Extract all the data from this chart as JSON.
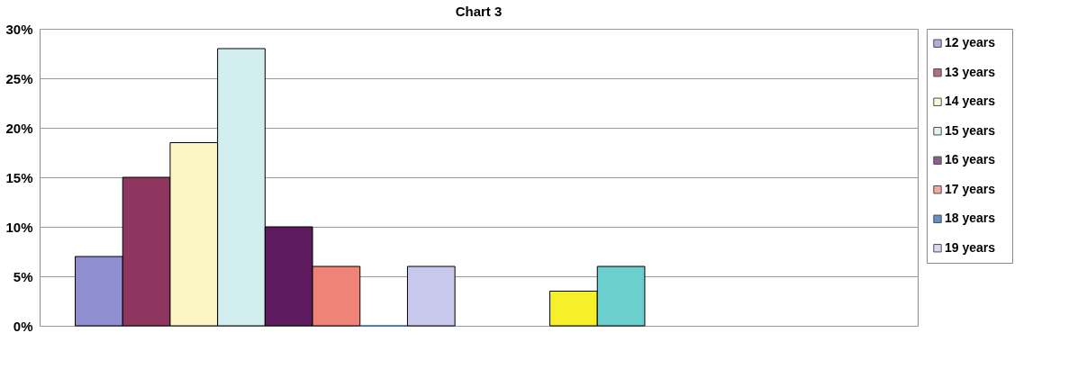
{
  "chart_data": {
    "type": "bar",
    "title": "Chart 3",
    "categories": [
      null
    ],
    "series": [
      {
        "name": "12 years",
        "color": "#8e8ed0",
        "values": [
          7
        ]
      },
      {
        "name": "13 years",
        "color": "#8e3560",
        "values": [
          15
        ]
      },
      {
        "name": "14 years",
        "color": "#fbf6c4",
        "values": [
          18.5
        ]
      },
      {
        "name": "15 years",
        "color": "#d3eeee",
        "values": [
          28
        ]
      },
      {
        "name": "16 years",
        "color": "#5e1a5e",
        "values": [
          10
        ]
      },
      {
        "name": "17 years",
        "color": "#f08378",
        "values": [
          6
        ]
      },
      {
        "name": "18 years",
        "color": "#1f63b8",
        "values": [
          0
        ]
      },
      {
        "name": "19 years",
        "color": "#c8c8ec",
        "values": [
          6
        ]
      },
      {
        "values": [
          0
        ]
      },
      {
        "values": [
          0
        ]
      },
      {
        "color": "#f5f02a",
        "values": [
          3.5
        ]
      },
      {
        "color": "#6ccfcf",
        "values": [
          6
        ]
      },
      {
        "values": [
          0
        ]
      },
      {
        "values": [
          0
        ]
      },
      {
        "values": [
          0
        ]
      },
      {
        "values": [
          0
        ]
      },
      {
        "values": [
          0
        ]
      }
    ],
    "ylim": [
      0,
      30
    ],
    "yticks": [
      {
        "value": 0,
        "label": "0%"
      },
      {
        "value": 5,
        "label": "5%"
      },
      {
        "value": 10,
        "label": "10%"
      },
      {
        "value": 15,
        "label": "15%"
      },
      {
        "value": 20,
        "label": "20%"
      },
      {
        "value": 25,
        "label": "25%"
      },
      {
        "value": 30,
        "label": "30%"
      }
    ],
    "grid": "y",
    "legend": "right"
  }
}
